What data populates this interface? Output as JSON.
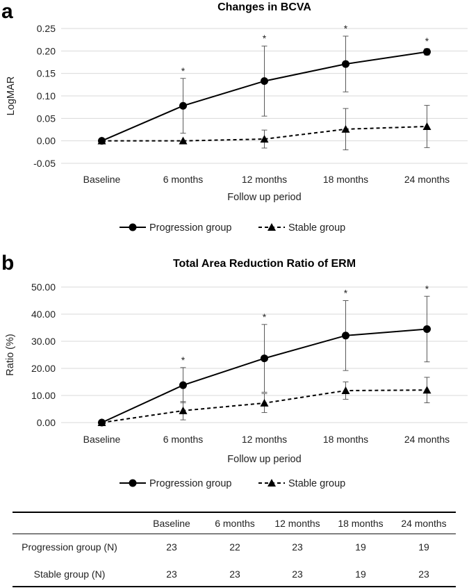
{
  "panel_labels": [
    "a",
    "b"
  ],
  "chart_data": [
    {
      "type": "line",
      "title": "Changes in BCVA",
      "xlabel": "Follow up period",
      "ylabel": "LogMAR",
      "ylim": [
        -0.05,
        0.25
      ],
      "yticks": [
        -0.05,
        0.0,
        0.05,
        0.1,
        0.15,
        0.2,
        0.25
      ],
      "ytick_labels": [
        "-0.05",
        "0.00",
        "0.05",
        "0.10",
        "0.15",
        "0.20",
        "0.25"
      ],
      "categories": [
        "Baseline",
        "6 months",
        "12 months",
        "18 months",
        "24 months"
      ],
      "grid": true,
      "legend_position": "bottom",
      "significance_marker": "*",
      "significant": [
        false,
        true,
        true,
        true,
        true
      ],
      "series": [
        {
          "name": "Progression group",
          "style": "solid",
          "marker": "circle",
          "values": [
            0.0,
            0.078,
            0.133,
            0.171,
            0.198
          ],
          "errors": [
            0.0,
            0.061,
            0.078,
            0.062,
            0.007
          ]
        },
        {
          "name": "Stable group",
          "style": "dashed",
          "marker": "triangle",
          "values": [
            0.0,
            0.0,
            0.004,
            0.026,
            0.032
          ],
          "errors": [
            0.0,
            0.0,
            0.02,
            0.046,
            0.047
          ]
        }
      ]
    },
    {
      "type": "line",
      "title": "Total Area Reduction Ratio of ERM",
      "xlabel": "Follow up period",
      "ylabel": "Ratio (%)",
      "ylim": [
        0,
        50
      ],
      "yticks": [
        0,
        10,
        20,
        30,
        40,
        50
      ],
      "ytick_labels": [
        "0.00",
        "10.00",
        "20.00",
        "30.00",
        "40.00",
        "50.00"
      ],
      "categories": [
        "Baseline",
        "6 months",
        "12 months",
        "18 months",
        "24 months"
      ],
      "grid": true,
      "legend_position": "bottom",
      "significance_marker": "*",
      "significant": [
        false,
        true,
        true,
        true,
        true
      ],
      "series": [
        {
          "name": "Progression group",
          "style": "solid",
          "marker": "circle",
          "values": [
            0.0,
            13.8,
            23.7,
            32.1,
            34.5
          ],
          "errors": [
            0.0,
            6.5,
            12.5,
            12.9,
            12.1
          ]
        },
        {
          "name": "Stable group",
          "style": "dashed",
          "marker": "triangle",
          "values": [
            0.0,
            4.4,
            7.2,
            11.8,
            12.0
          ],
          "errors": [
            0.0,
            3.4,
            3.5,
            3.2,
            4.7
          ]
        }
      ]
    }
  ],
  "table": {
    "headers": [
      "",
      "Baseline",
      "6 months",
      "12 months",
      "18 months",
      "24 months"
    ],
    "rows": [
      [
        "Progression group (N)",
        "23",
        "22",
        "23",
        "19",
        "19"
      ],
      [
        "Stable group (N)",
        "23",
        "23",
        "23",
        "19",
        "23"
      ]
    ]
  }
}
